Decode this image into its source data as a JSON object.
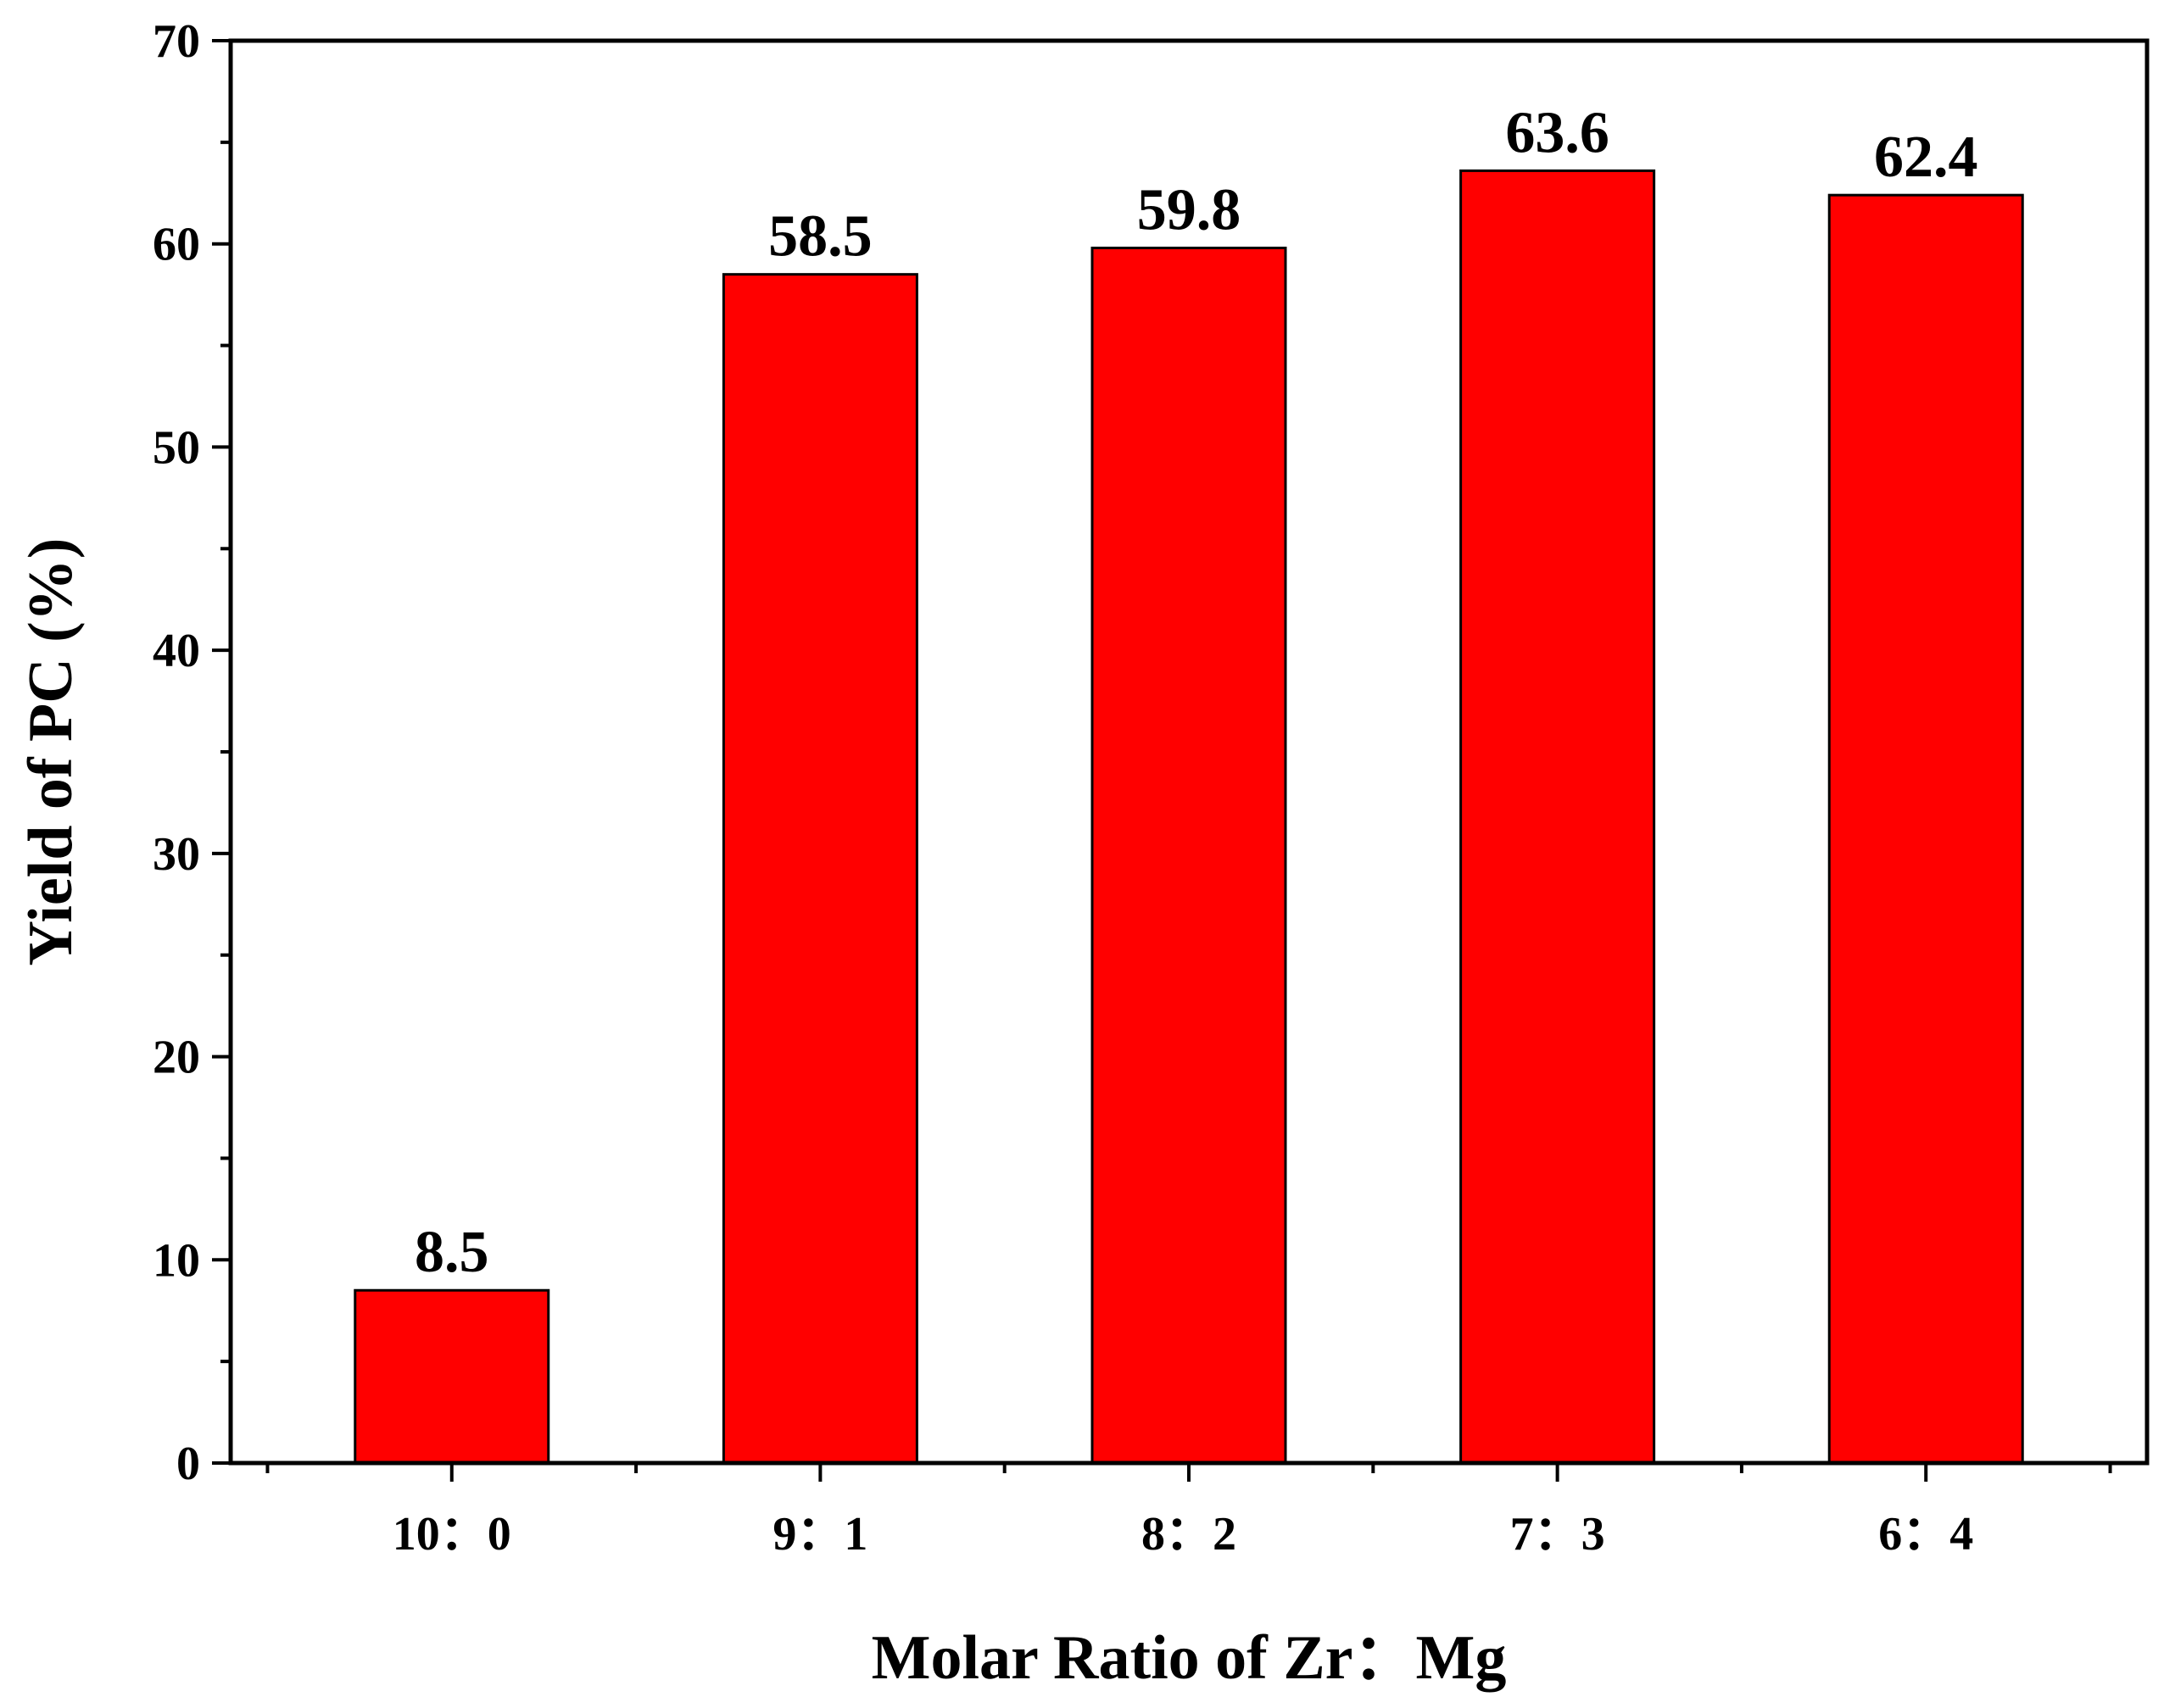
{
  "chart_data": {
    "type": "bar",
    "title": "",
    "xlabel": "Molar Ratio of Zr：Mg",
    "ylabel": "Yield of PC (%)",
    "categories": [
      "10：0",
      "9：1",
      "8：2",
      "7：3",
      "6：4"
    ],
    "values": [
      8.5,
      58.5,
      59.8,
      63.6,
      62.4
    ],
    "data_labels": [
      "8.5",
      "58.5",
      "59.8",
      "63.6",
      "62.4"
    ],
    "ylim": [
      0,
      70
    ],
    "yticks": [
      0,
      10,
      20,
      30,
      40,
      50,
      60,
      70
    ],
    "ytick_labels": [
      "0",
      "10",
      "20",
      "30",
      "40",
      "50",
      "60",
      "70"
    ],
    "grid": false,
    "bar_color": "#ff0000",
    "edge_color": "#000000"
  }
}
